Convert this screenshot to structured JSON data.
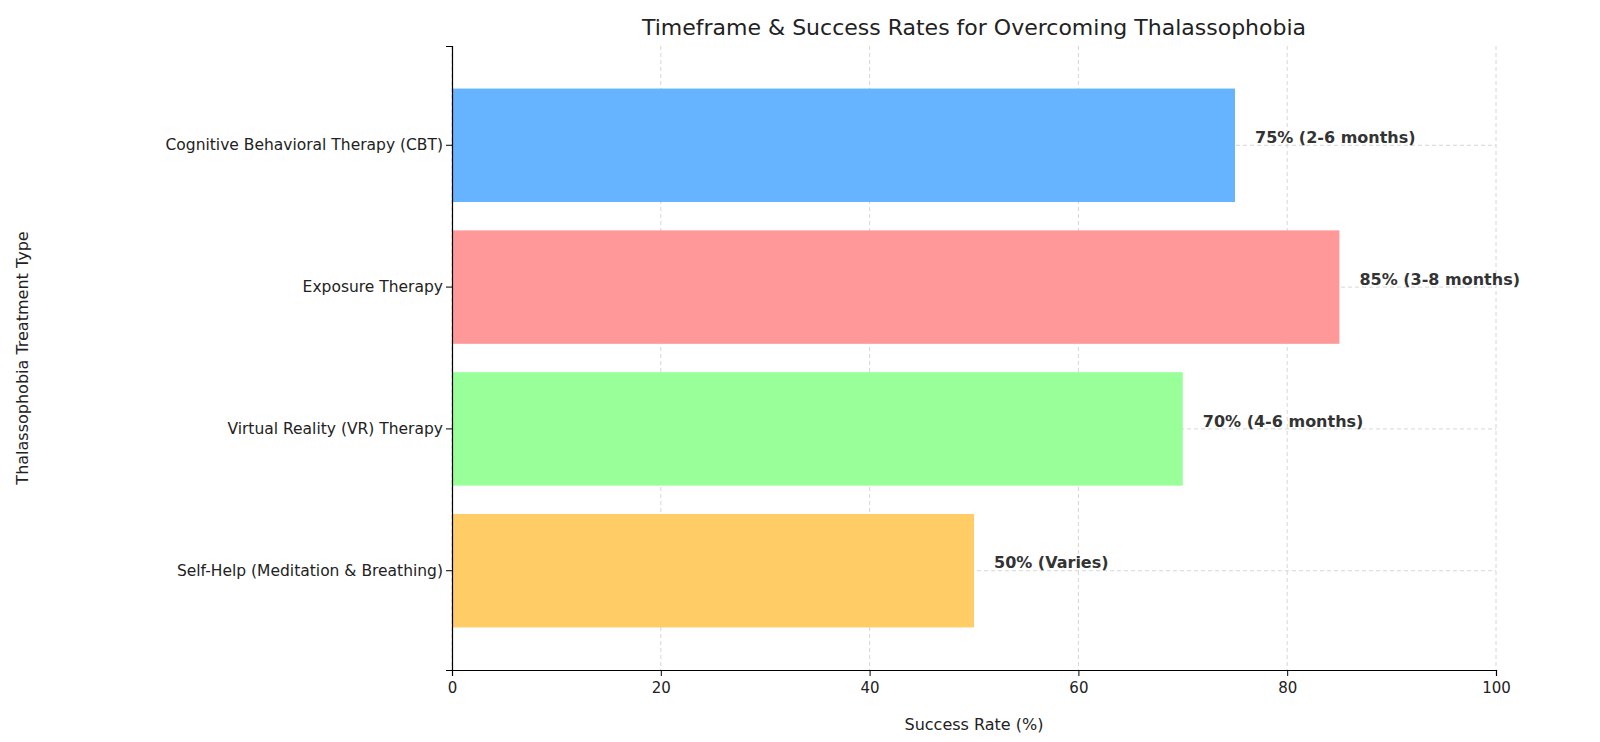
{
  "chart_data": {
    "type": "bar",
    "orientation": "horizontal",
    "title": "Timeframe & Success Rates for Overcoming Thalassophobia",
    "x_label": "Success Rate (%)",
    "y_label": "Thalassophobia Treatment Type",
    "categories": [
      "Cognitive Behavioral Therapy (CBT)",
      "Exposure Therapy",
      "Virtual Reality (VR) Therapy",
      "Self-Help (Meditation & Breathing)"
    ],
    "values": [
      75,
      85,
      70,
      50
    ],
    "value_labels": [
      "75% (2-6 months)",
      "85% (3-8 months)",
      "70% (4-6 months)",
      "50% (Varies)"
    ],
    "colors": [
      "#66b3ff",
      "#ff9999",
      "#99ff99",
      "#ffcc66"
    ],
    "xlim": [
      0,
      100
    ],
    "xticks": [
      0,
      20,
      40,
      60,
      80,
      100
    ],
    "grid": true,
    "data_labels": true
  }
}
